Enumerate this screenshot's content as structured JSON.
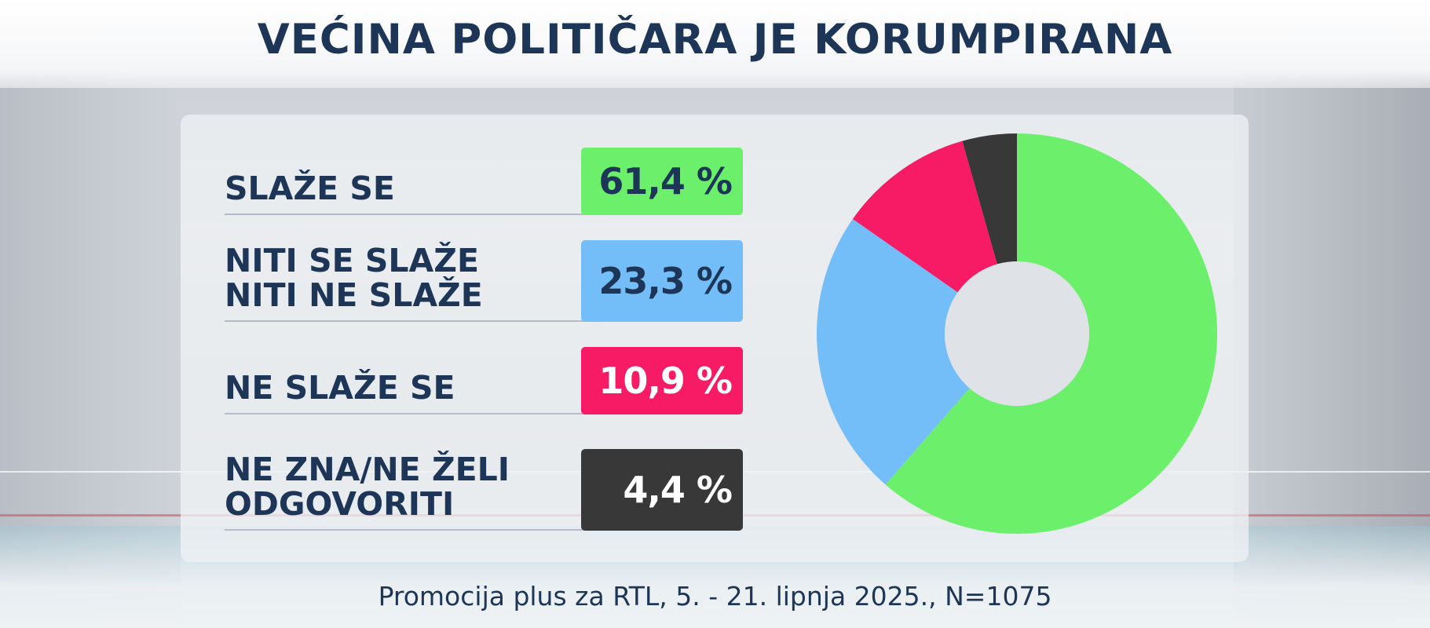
{
  "title": "VEĆINA POLITIČARA JE KORUMPIRANA",
  "source": "Promocija plus za RTL, 5. - 21. lipnja 2025., N=1075",
  "rows": [
    {
      "label": "SLAŽE SE",
      "value_text": "61,4 %",
      "color": "#6cf06c",
      "text_color": "#1d3657"
    },
    {
      "label": "NITI SE SLAŽE\nNITI NE SLAŽE",
      "value_text": "23,3 %",
      "color": "#73bdf8",
      "text_color": "#1d3657"
    },
    {
      "label": "NE SLAŽE SE",
      "value_text": "10,9 %",
      "color": "#f71a64",
      "text_color": "#ffffff"
    },
    {
      "label": "NE ZNA/NE ŽELI\nODGOVORITI",
      "value_text": "4,4 %",
      "color": "#383838",
      "text_color": "#ffffff"
    }
  ],
  "chart_data": {
    "type": "pie",
    "title": "VEĆINA POLITIČARA JE KORUMPIRANA",
    "categories": [
      "SLAŽE SE",
      "NITI SE SLAŽE NITI NE SLAŽE",
      "NE SLAŽE SE",
      "NE ZNA/NE ŽELI ODGOVORITI"
    ],
    "values": [
      61.4,
      23.3,
      10.9,
      4.4
    ],
    "colors": [
      "#6cf06c",
      "#73bdf8",
      "#f71a64",
      "#383838"
    ],
    "unit": "%",
    "donut": true,
    "start": "top",
    "direction": "clockwise"
  }
}
